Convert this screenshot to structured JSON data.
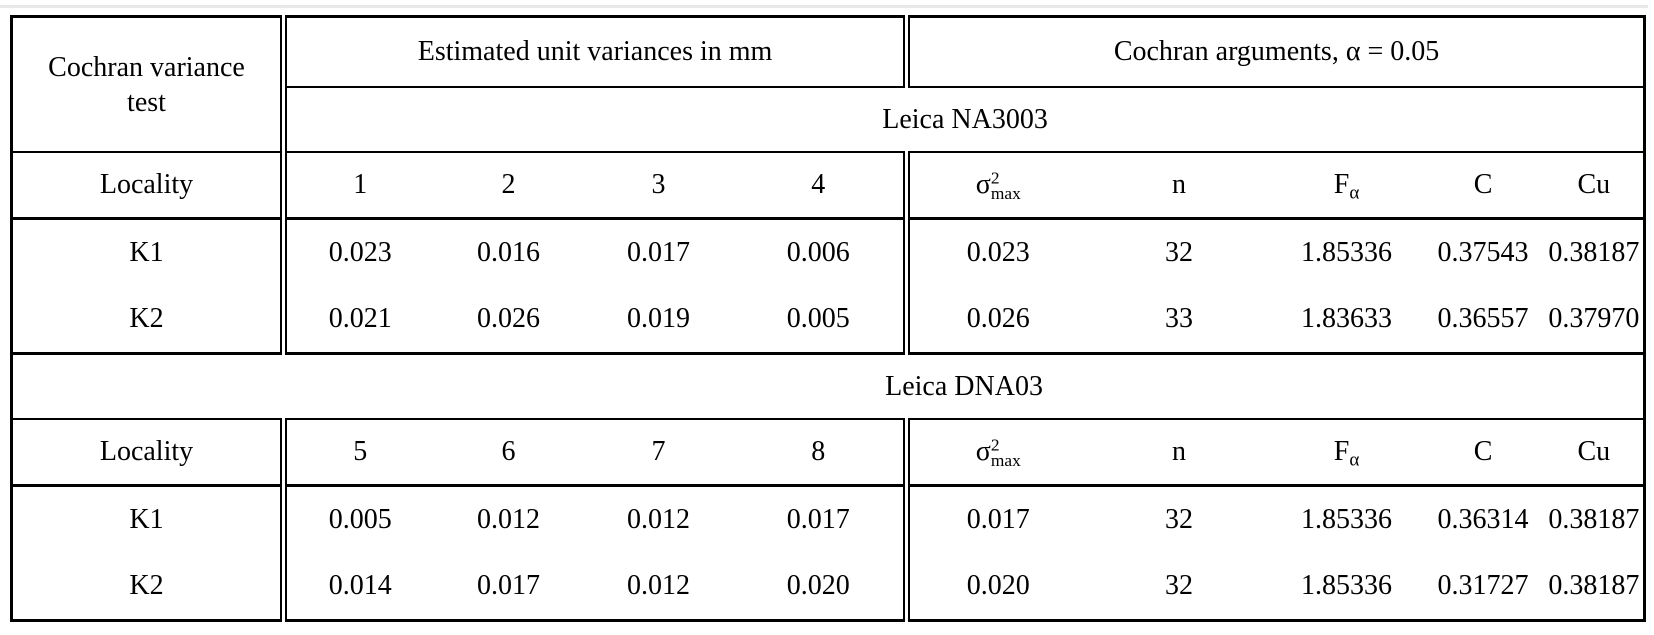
{
  "page": {
    "top_rule_color": "#e8e8e8",
    "border_color": "#000000",
    "text_color": "#000000"
  },
  "table": {
    "corner_header": "Cochran variance test",
    "group_headers": {
      "variances": "Estimated unit variances in mm",
      "cochran": "Cochran arguments, α = 0.05"
    },
    "locality_label": "Locality",
    "cochran_cols": {
      "sigma_base": "σ",
      "sigma_sup": "2",
      "sigma_sub": "max",
      "n": "n",
      "f_base": "F",
      "f_sub": "α",
      "c": "C",
      "cu": "Cu"
    },
    "sections": [
      {
        "instrument": "Leica NA3003",
        "variance_cols": [
          "1",
          "2",
          "3",
          "4"
        ],
        "rows": [
          {
            "locality": "K1",
            "variances": [
              "0.023",
              "0.016",
              "0.017",
              "0.006"
            ],
            "sigma_max": "0.023",
            "n": "32",
            "f": "1.85336",
            "c": "0.37543",
            "cu": "0.38187"
          },
          {
            "locality": "K2",
            "variances": [
              "0.021",
              "0.026",
              "0.019",
              "0.005"
            ],
            "sigma_max": "0.026",
            "n": "33",
            "f": "1.83633",
            "c": "0.36557",
            "cu": "0.37970"
          }
        ]
      },
      {
        "instrument": "Leica DNA03",
        "variance_cols": [
          "5",
          "6",
          "7",
          "8"
        ],
        "rows": [
          {
            "locality": "K1",
            "variances": [
              "0.005",
              "0.012",
              "0.012",
              "0.017"
            ],
            "sigma_max": "0.017",
            "n": "32",
            "f": "1.85336",
            "c": "0.36314",
            "cu": "0.38187"
          },
          {
            "locality": "K2",
            "variances": [
              "0.014",
              "0.017",
              "0.012",
              "0.020"
            ],
            "sigma_max": "0.020",
            "n": "32",
            "f": "1.85336",
            "c": "0.31727",
            "cu": "0.38187"
          }
        ]
      }
    ]
  }
}
